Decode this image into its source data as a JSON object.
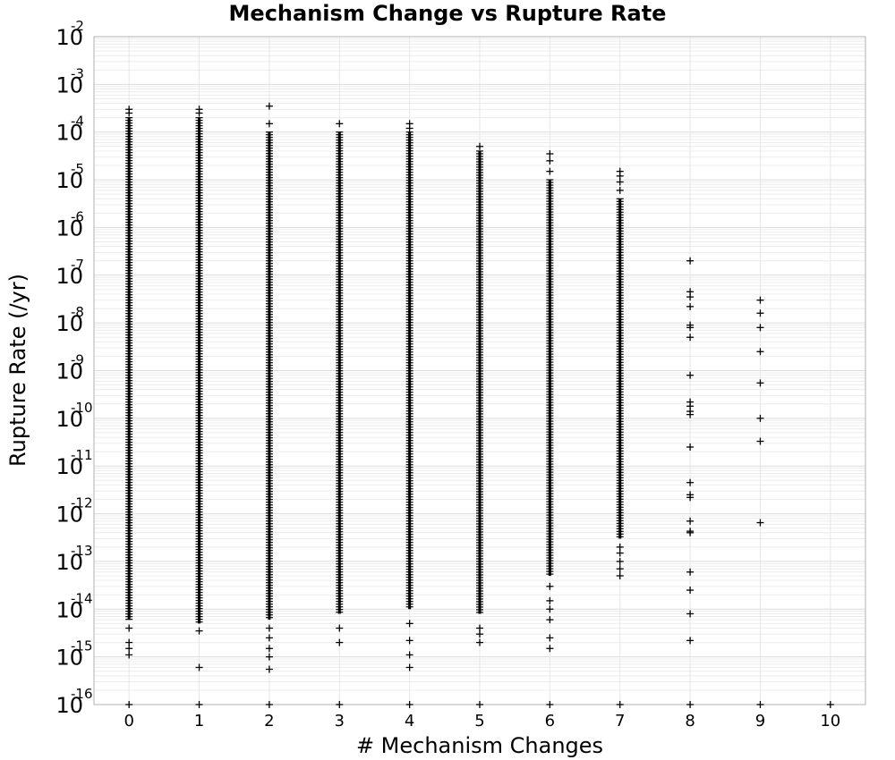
{
  "chart_data": {
    "type": "scatter",
    "title": "Mechanism Change vs Rupture Rate",
    "xlabel": "# Mechanism Changes",
    "ylabel": "Rupture Rate (/yr)",
    "xlim": [
      -0.5,
      10.5
    ],
    "ylim": [
      1e-16,
      0.01
    ],
    "y_scale": "log",
    "grid": true,
    "marker": "plus",
    "marker_color": "#000000",
    "x_ticks": [
      "0",
      "1",
      "2",
      "3",
      "4",
      "5",
      "6",
      "7",
      "8",
      "9",
      "10"
    ],
    "y_ticks": [
      {
        "base": "10",
        "exp": "-16",
        "value": 1e-16
      },
      {
        "base": "10",
        "exp": "-15",
        "value": 1e-15
      },
      {
        "base": "10",
        "exp": "-14",
        "value": 1e-14
      },
      {
        "base": "10",
        "exp": "-13",
        "value": 1e-13
      },
      {
        "base": "10",
        "exp": "-12",
        "value": 1e-12
      },
      {
        "base": "10",
        "exp": "-11",
        "value": 1e-11
      },
      {
        "base": "10",
        "exp": "-10",
        "value": 1e-10
      },
      {
        "base": "10",
        "exp": "-9",
        "value": 1e-09
      },
      {
        "base": "10",
        "exp": "-8",
        "value": 1e-08
      },
      {
        "base": "10",
        "exp": "-7",
        "value": 1e-07
      },
      {
        "base": "10",
        "exp": "-6",
        "value": 1e-06
      },
      {
        "base": "10",
        "exp": "-5",
        "value": 1e-05
      },
      {
        "base": "10",
        "exp": "-4",
        "value": 0.0001
      },
      {
        "base": "10",
        "exp": "-3",
        "value": 0.001
      },
      {
        "base": "10",
        "exp": "-2",
        "value": 0.01
      }
    ],
    "columns": [
      {
        "x": 0,
        "dense_range": [
          6e-15,
          0.0002
        ],
        "sparse": [
          4e-15,
          2e-15,
          1.5e-15,
          1.1e-15,
          0.0003,
          0.00025
        ],
        "floor": 1e-16
      },
      {
        "x": 1,
        "dense_range": [
          5e-15,
          0.0002
        ],
        "sparse": [
          3.5e-15,
          6e-16,
          0.00025,
          0.0003
        ],
        "floor": 1e-16
      },
      {
        "x": 2,
        "dense_range": [
          6e-15,
          0.0001
        ],
        "sparse": [
          4e-15,
          2.5e-15,
          1.5e-15,
          1e-15,
          5.5e-16,
          0.00035,
          0.00015
        ],
        "floor": 1e-16
      },
      {
        "x": 3,
        "dense_range": [
          8e-15,
          0.0001
        ],
        "sparse": [
          4e-15,
          2e-15,
          0.00015
        ],
        "floor": 1e-16
      },
      {
        "x": 4,
        "dense_range": [
          1e-14,
          0.0001
        ],
        "sparse": [
          5e-15,
          2.2e-15,
          1.1e-15,
          6e-16,
          0.00015,
          0.00012
        ],
        "floor": 1e-16
      },
      {
        "x": 5,
        "dense_range": [
          8e-15,
          4e-05
        ],
        "sparse": [
          4e-15,
          3e-15,
          2e-15,
          5e-05
        ],
        "floor": 1e-16
      },
      {
        "x": 6,
        "dense_range": [
          5e-14,
          1e-05
        ],
        "sparse": [
          3e-14,
          1.5e-14,
          1e-14,
          6e-15,
          2.5e-15,
          1.5e-15,
          3.5e-05,
          2.5e-05,
          1.5e-05
        ],
        "floor": 1e-16
      },
      {
        "x": 7,
        "dense_range": [
          3e-13,
          4e-06
        ],
        "sparse": [
          2e-13,
          1.5e-13,
          1e-13,
          7e-14,
          5e-14,
          1.5e-05,
          1.2e-05,
          9e-06,
          6e-06
        ],
        "floor": 1e-16
      },
      {
        "x": 8,
        "points": [
          2e-07,
          4.5e-08,
          3.5e-08,
          2.2e-08,
          9e-09,
          8e-09,
          5e-09,
          8e-10,
          2.2e-10,
          1.8e-10,
          1.4e-10,
          1.2e-10,
          2.5e-11,
          4.5e-12,
          2.5e-12,
          2.2e-12,
          7e-13,
          4.3e-13,
          4e-13,
          6e-14,
          2.5e-14,
          8e-15,
          2.2e-15,
          1e-16
        ]
      },
      {
        "x": 9,
        "points": [
          3e-08,
          1.6e-08,
          8e-09,
          2.5e-09,
          5.5e-10,
          1e-10,
          3.3e-11,
          6.5e-13,
          1e-16
        ]
      },
      {
        "x": 10,
        "points": [
          1e-16
        ]
      }
    ]
  }
}
